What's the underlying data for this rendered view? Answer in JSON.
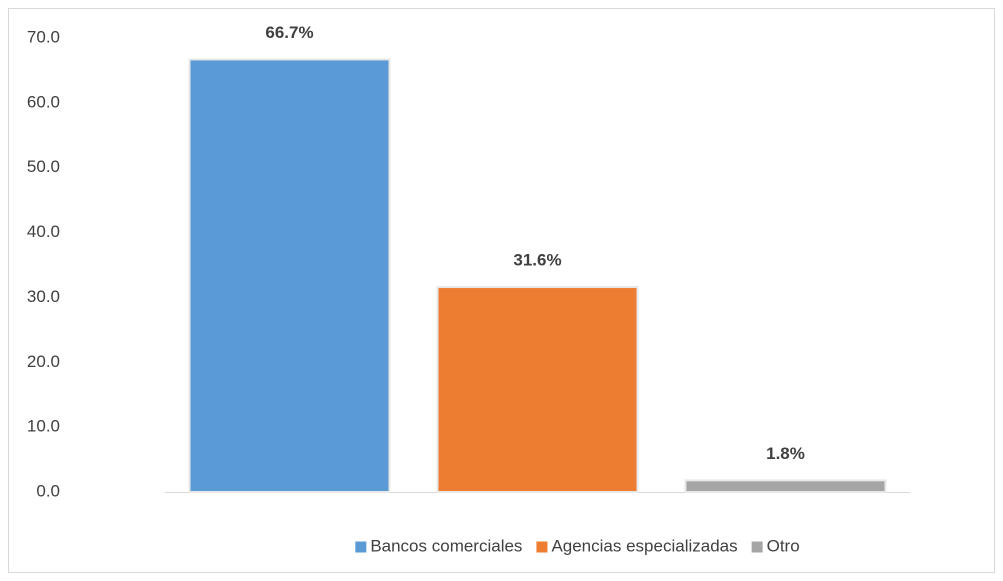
{
  "chart_data": {
    "type": "bar",
    "categories": [
      null
    ],
    "series": [
      {
        "name": "Bancos comerciales",
        "color": "#5b9bd5",
        "values": [
          66.7
        ],
        "value_labels": [
          "66.7%"
        ]
      },
      {
        "name": "Agencias especializadas",
        "color": "#ed7d31",
        "values": [
          31.6
        ],
        "value_labels": [
          "31.6%"
        ]
      },
      {
        "name": "Otro",
        "color": "#a5a5a5",
        "values": [
          1.8
        ],
        "value_labels": [
          "1.8%"
        ]
      }
    ],
    "ylim": [
      0,
      70
    ],
    "yticks": [
      {
        "value": 0,
        "label": "0.0"
      },
      {
        "value": 10,
        "label": "10.0"
      },
      {
        "value": 20,
        "label": "20.0"
      },
      {
        "value": 30,
        "label": "30.0"
      },
      {
        "value": 40,
        "label": "40.0"
      },
      {
        "value": 50,
        "label": "50.0"
      },
      {
        "value": 60,
        "label": "60.0"
      },
      {
        "value": 70,
        "label": "70.0"
      }
    ],
    "grid": false,
    "legend": "bottom"
  }
}
